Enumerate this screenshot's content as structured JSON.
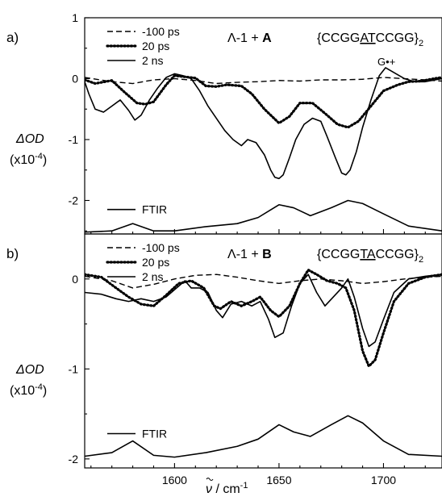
{
  "chart_data": [
    {
      "panel_label": "a)",
      "type": "line",
      "title": "Λ-1 + A",
      "title_prefix": "Λ-1 + ",
      "title_bold": "A",
      "sequence": {
        "pre": "{CCGG",
        "underlined": "AT",
        "post": "CCGG}",
        "sub": "2"
      },
      "annotation": "G•+",
      "xlim": [
        1557,
        1728
      ],
      "ylim": [
        -2.55,
        1
      ],
      "yticks": [
        1,
        0,
        -1,
        -2
      ],
      "ytick_labels": [
        "1",
        "0",
        "-1",
        "-2"
      ],
      "ylabel_line1": "ΔOD",
      "ylabel_line2": "(x10",
      "ylabel_exp": "-4",
      "legend_location": "top-left",
      "series": [
        {
          "name": "-100 ps",
          "style": "dashed",
          "x": [
            1557,
            1570,
            1580,
            1590,
            1600,
            1610,
            1620,
            1630,
            1640,
            1650,
            1660,
            1670,
            1680,
            1690,
            1700,
            1710,
            1720,
            1728
          ],
          "y": [
            0.02,
            -0.05,
            -0.08,
            -0.02,
            0.0,
            -0.03,
            -0.08,
            -0.06,
            -0.05,
            -0.03,
            -0.04,
            -0.02,
            -0.02,
            -0.01,
            0.02,
            0.0,
            -0.02,
            -0.04
          ]
        },
        {
          "name": "20 ps",
          "style": "dotted",
          "x": [
            1557,
            1562,
            1570,
            1576,
            1582,
            1586,
            1590,
            1596,
            1600,
            1605,
            1610,
            1615,
            1620,
            1625,
            1632,
            1637,
            1643,
            1650,
            1655,
            1660,
            1666,
            1672,
            1678,
            1683,
            1688,
            1694,
            1700,
            1707,
            1712,
            1718,
            1724,
            1728
          ],
          "y": [
            -0.02,
            -0.08,
            -0.03,
            -0.22,
            -0.4,
            -0.42,
            -0.38,
            -0.1,
            0.05,
            0.03,
            0.01,
            -0.12,
            -0.13,
            -0.1,
            -0.12,
            -0.25,
            -0.5,
            -0.73,
            -0.62,
            -0.4,
            -0.4,
            -0.57,
            -0.75,
            -0.8,
            -0.7,
            -0.45,
            -0.2,
            -0.1,
            -0.05,
            -0.04,
            0.0,
            0.02
          ]
        },
        {
          "name": "2 ns",
          "style": "solid",
          "x": [
            1557,
            1559,
            1562,
            1566,
            1570,
            1574,
            1578,
            1581,
            1584,
            1588,
            1592,
            1596,
            1600,
            1604,
            1608,
            1612,
            1616,
            1620,
            1624,
            1628,
            1632,
            1635,
            1639,
            1643,
            1646,
            1648,
            1650,
            1652,
            1655,
            1658,
            1662,
            1666,
            1670,
            1673,
            1677,
            1680,
            1682,
            1684,
            1687,
            1690,
            1694,
            1698,
            1701,
            1705,
            1710,
            1715,
            1720,
            1728
          ],
          "y": [
            -0.05,
            -0.25,
            -0.5,
            -0.55,
            -0.45,
            -0.35,
            -0.52,
            -0.68,
            -0.6,
            -0.35,
            -0.15,
            0.02,
            0.08,
            0.05,
            0.0,
            -0.2,
            -0.45,
            -0.65,
            -0.85,
            -1.0,
            -1.1,
            -1.0,
            -1.05,
            -1.25,
            -1.5,
            -1.62,
            -1.64,
            -1.58,
            -1.3,
            -1.0,
            -0.75,
            -0.65,
            -0.7,
            -0.95,
            -1.3,
            -1.55,
            -1.58,
            -1.5,
            -1.2,
            -0.8,
            -0.35,
            0.05,
            0.18,
            0.1,
            0.0,
            -0.05,
            -0.05,
            0.0
          ]
        }
      ],
      "ftir": {
        "name": "FTIR",
        "style": "solid",
        "x": [
          1557,
          1570,
          1580,
          1590,
          1600,
          1615,
          1630,
          1640,
          1650,
          1657,
          1665,
          1675,
          1683,
          1690,
          1700,
          1712,
          1728
        ],
        "y": [
          -2.52,
          -2.5,
          -2.38,
          -2.5,
          -2.5,
          -2.43,
          -2.38,
          -2.28,
          -2.07,
          -2.12,
          -2.25,
          -2.12,
          -2.0,
          -2.05,
          -2.22,
          -2.42,
          -2.5
        ]
      }
    },
    {
      "panel_label": "b)",
      "type": "line",
      "title": "Λ-1 + B",
      "title_prefix": "Λ-1 + ",
      "title_bold": "B",
      "sequence": {
        "pre": "{CCGG",
        "underlined": "TA",
        "post": "CCGG}",
        "sub": "2"
      },
      "xlim": [
        1557,
        1728
      ],
      "ylim": [
        -2.1,
        0.5
      ],
      "yticks": [
        0,
        -1,
        -2
      ],
      "ytick_labels": [
        "0",
        "-1",
        "-2"
      ],
      "ylabel_line1": "ΔOD",
      "ylabel_line2": "(x10",
      "ylabel_exp": "-4",
      "xticks": [
        1600,
        1650,
        1700
      ],
      "xtick_labels": [
        "1600",
        "1650",
        "1700"
      ],
      "xlabel": "ν / cm",
      "xlabel_exp": "-1",
      "legend_location": "top-left",
      "series": [
        {
          "name": "-100 ps",
          "style": "dashed",
          "x": [
            1557,
            1570,
            1580,
            1590,
            1600,
            1610,
            1620,
            1630,
            1640,
            1650,
            1660,
            1670,
            1680,
            1690,
            1700,
            1710,
            1720,
            1728
          ],
          "y": [
            0.03,
            -0.02,
            -0.1,
            -0.06,
            0.0,
            0.04,
            0.05,
            0.02,
            -0.02,
            -0.05,
            -0.02,
            0.0,
            -0.02,
            -0.05,
            -0.03,
            0.0,
            0.02,
            0.03
          ]
        },
        {
          "name": "20 ps",
          "style": "dotted",
          "x": [
            1557,
            1565,
            1572,
            1578,
            1584,
            1590,
            1596,
            1602,
            1608,
            1614,
            1619,
            1622,
            1627,
            1632,
            1637,
            1641,
            1646,
            1650,
            1655,
            1660,
            1664,
            1668,
            1673,
            1678,
            1682,
            1686,
            1690,
            1693,
            1696,
            1700,
            1705,
            1712,
            1720,
            1728
          ],
          "y": [
            0.05,
            0.02,
            -0.1,
            -0.2,
            -0.28,
            -0.3,
            -0.18,
            -0.05,
            -0.02,
            -0.1,
            -0.3,
            -0.33,
            -0.25,
            -0.3,
            -0.25,
            -0.2,
            -0.35,
            -0.42,
            -0.3,
            -0.05,
            0.1,
            0.05,
            -0.02,
            -0.05,
            -0.1,
            -0.35,
            -0.8,
            -0.97,
            -0.9,
            -0.6,
            -0.25,
            -0.05,
            0.02,
            0.05
          ]
        },
        {
          "name": "2 ns",
          "style": "solid",
          "x": [
            1557,
            1565,
            1572,
            1578,
            1584,
            1590,
            1596,
            1602,
            1605,
            1608,
            1612,
            1616,
            1620,
            1623,
            1627,
            1632,
            1637,
            1641,
            1645,
            1648,
            1652,
            1656,
            1660,
            1664,
            1668,
            1672,
            1676,
            1680,
            1683,
            1686,
            1690,
            1693,
            1696,
            1700,
            1705,
            1712,
            1720,
            1728
          ],
          "y": [
            -0.15,
            -0.17,
            -0.22,
            -0.25,
            -0.22,
            -0.25,
            -0.2,
            -0.08,
            -0.02,
            -0.1,
            -0.1,
            -0.15,
            -0.35,
            -0.43,
            -0.28,
            -0.25,
            -0.3,
            -0.25,
            -0.45,
            -0.65,
            -0.6,
            -0.3,
            -0.05,
            0.05,
            -0.15,
            -0.3,
            -0.2,
            -0.1,
            0.0,
            -0.2,
            -0.55,
            -0.75,
            -0.7,
            -0.45,
            -0.15,
            0.0,
            0.03,
            0.05
          ]
        }
      ],
      "ftir": {
        "name": "FTIR",
        "style": "solid",
        "x": [
          1557,
          1570,
          1580,
          1590,
          1600,
          1615,
          1630,
          1640,
          1650,
          1657,
          1665,
          1675,
          1683,
          1690,
          1700,
          1712,
          1728
        ],
        "y": [
          -1.97,
          -1.93,
          -1.8,
          -1.96,
          -1.98,
          -1.93,
          -1.86,
          -1.78,
          -1.62,
          -1.7,
          -1.75,
          -1.62,
          -1.52,
          -1.6,
          -1.8,
          -1.95,
          -1.97
        ]
      }
    }
  ]
}
